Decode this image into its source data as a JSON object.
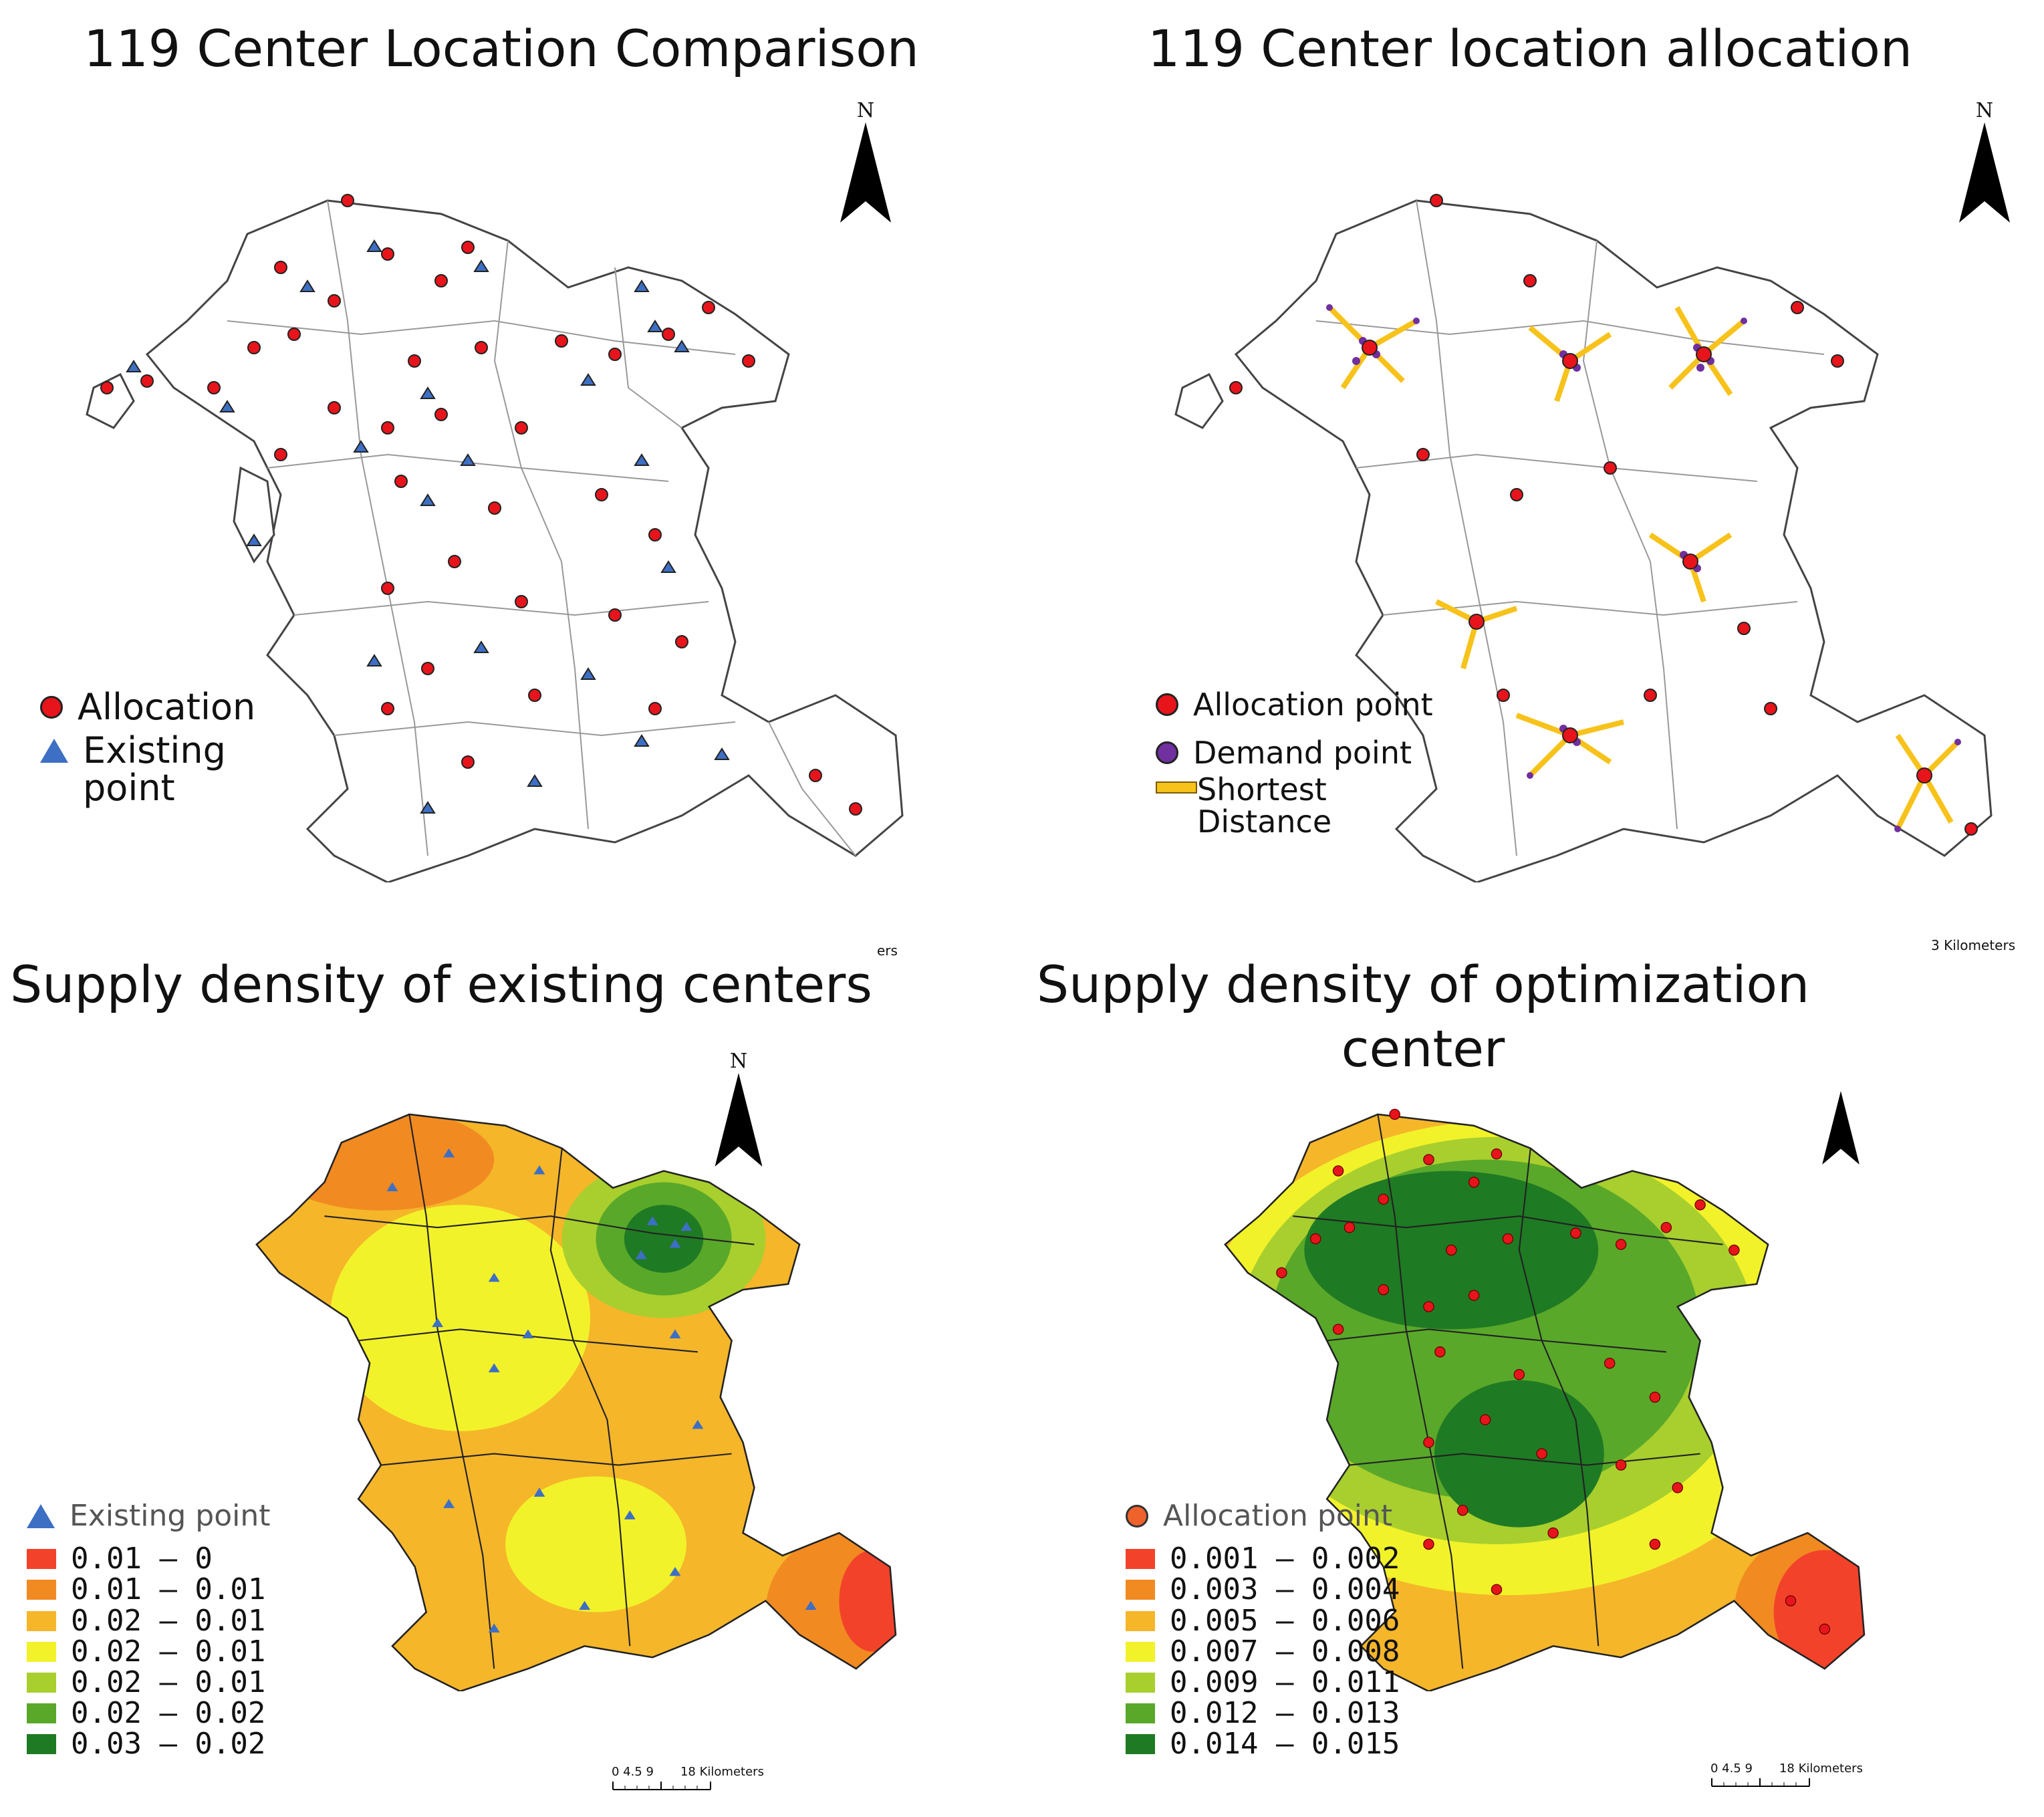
{
  "panels": {
    "top_left": {
      "title": "119 Center Location Comparison",
      "legend": [
        {
          "label": "Allocation",
          "symbol": "red-circle"
        },
        {
          "label": "Existing",
          "label2": "point",
          "symbol": "blue-triangle"
        }
      ]
    },
    "top_right": {
      "title": "119 Center location allocation",
      "legend": [
        {
          "label": "Allocation point",
          "symbol": "red-circle"
        },
        {
          "label": "Demand point",
          "symbol": "purple-circle"
        },
        {
          "label": "Shortest",
          "label2": "Distance",
          "symbol": "yellow-line"
        }
      ],
      "scale_fragment": "3 Kilometers"
    },
    "bottom_left": {
      "title": "Supply density of existing centers",
      "point_legend": "Existing point",
      "classes": [
        {
          "label": "0.01 – 0",
          "color": "#f2432a"
        },
        {
          "label": "0.01 – 0.01",
          "color": "#f28a22"
        },
        {
          "label": "0.02 – 0.01",
          "color": "#f5b62a"
        },
        {
          "label": "0.02 – 0.01",
          "color": "#f2f22a"
        },
        {
          "label": "0.02 – 0.01",
          "color": "#a8cf2e"
        },
        {
          "label": "0.02 – 0.02",
          "color": "#5aa82a"
        },
        {
          "label": "0.03 – 0.02",
          "color": "#1f7a24"
        }
      ],
      "scale_numbers": "0  4.5  9",
      "scale_km": "18 Kilometers",
      "top_fragment": "ers"
    },
    "bottom_right": {
      "title_line1": "Supply density of optimization",
      "title_line2": "center",
      "point_legend": "Allocation point",
      "classes": [
        {
          "label": "0.001 – 0.002",
          "color": "#f2432a"
        },
        {
          "label": "0.003 – 0.004",
          "color": "#f28a22"
        },
        {
          "label": "0.005 – 0.006",
          "color": "#f5b62a"
        },
        {
          "label": "0.007 – 0.008",
          "color": "#f2f22a"
        },
        {
          "label": "0.009 – 0.011",
          "color": "#a8cf2e"
        },
        {
          "label": "0.012 – 0.013",
          "color": "#5aa82a"
        },
        {
          "label": "0.014 – 0.015",
          "color": "#1f7a24"
        }
      ],
      "scale_numbers": "0  4.5  9",
      "scale_km": "18 Kilometers"
    }
  },
  "north_label": "N",
  "colors": {
    "allocation": "#e8141b",
    "existing": "#3d6fc4",
    "demand": "#7030a0",
    "distance_line": "#f7c21a",
    "boundary": "#555555"
  }
}
